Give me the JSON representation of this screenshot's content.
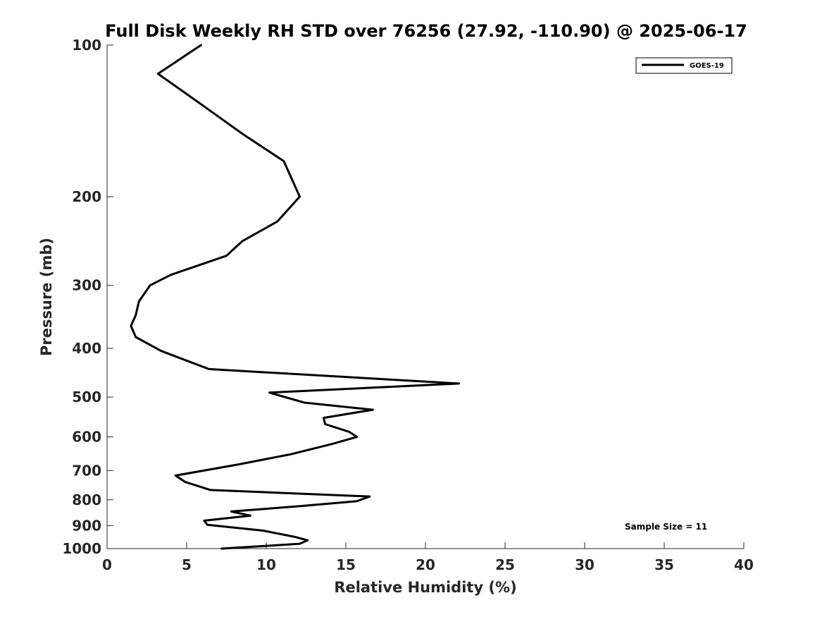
{
  "chart_data": {
    "type": "line",
    "title": "Full Disk Weekly RH STD over 76256 (27.92, -110.90) @ 2025-06-17",
    "xlabel": "Relative Humidity (%)",
    "ylabel": "Pressure (mb)",
    "xlim": [
      0,
      40
    ],
    "ylim": [
      100,
      1000
    ],
    "yscale": "log",
    "y_reversed": true,
    "xticks": [
      0,
      5,
      10,
      15,
      20,
      25,
      30,
      35,
      40
    ],
    "yticks": [
      100,
      200,
      300,
      400,
      500,
      600,
      700,
      800,
      900,
      1000
    ],
    "grid": false,
    "legend_position": "top-right",
    "annotation": "Sample Size = 11",
    "series": [
      {
        "name": "GOES-19",
        "color": "#000000",
        "x": [
          5.9,
          3.2,
          5.9,
          8.5,
          11.1,
          12.1,
          10.7,
          8.5,
          7.5,
          4.0,
          2.7,
          2.0,
          1.8,
          1.5,
          1.8,
          3.4,
          6.4,
          22.1,
          10.2,
          12.4,
          16.7,
          13.6,
          13.7,
          15.2,
          15.7,
          14.1,
          11.5,
          8.2,
          4.3,
          4.9,
          6.5,
          16.5,
          15.7,
          12.0,
          7.8,
          9.0,
          6.1,
          6.3,
          9.8,
          11.8,
          12.6,
          12.1,
          10.2,
          7.2
        ],
        "y": [
          100,
          114,
          131,
          150,
          170,
          200,
          224,
          245,
          262,
          286,
          300,
          323,
          344,
          361,
          380,
          405,
          440,
          470,
          490,
          513,
          530,
          550,
          566,
          586,
          600,
          620,
          650,
          681,
          716,
          737,
          765,
          788,
          805,
          824,
          844,
          860,
          880,
          897,
          921,
          948,
          963,
          978,
          987,
          1000
        ]
      }
    ]
  }
}
